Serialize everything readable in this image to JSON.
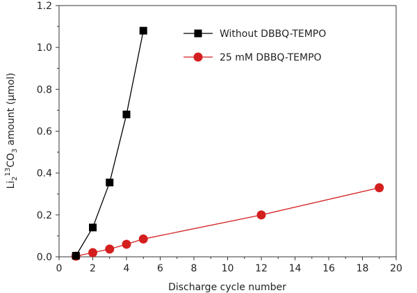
{
  "chart_data": {
    "type": "line",
    "title": "",
    "xlabel": "Discharge cycle number",
    "ylabel": {
      "parts": [
        {
          "text": "Li",
          "style": "normal"
        },
        {
          "text": "2",
          "style": "sub"
        },
        {
          "text": "13",
          "style": "sup"
        },
        {
          "text": "CO",
          "style": "normal"
        },
        {
          "text": "3",
          "style": "sub"
        },
        {
          "text": " amount (μmol)",
          "style": "normal"
        }
      ]
    },
    "xlim": [
      0,
      20
    ],
    "ylim": [
      0,
      1.2
    ],
    "x_ticks": [
      0,
      2,
      4,
      6,
      8,
      10,
      12,
      14,
      16,
      18,
      20
    ],
    "x_tick_labels": [
      "0",
      "2",
      "4",
      "6",
      "8",
      "10",
      "12",
      "14",
      "16",
      "18",
      "20"
    ],
    "y_ticks": [
      0,
      0.2,
      0.4,
      0.6,
      0.8,
      1.0,
      1.2
    ],
    "y_tick_labels": [
      "0.0",
      "0.2",
      "0.4",
      "0.6",
      "0.8",
      "1.0",
      "1.2"
    ],
    "grid": false,
    "legend_position": "top-right",
    "series": [
      {
        "name": "Without DBBQ-TEMPO",
        "color": "#000000",
        "marker": "square",
        "x": [
          1,
          2,
          3,
          4,
          5
        ],
        "values": [
          0.005,
          0.14,
          0.355,
          0.68,
          1.08
        ]
      },
      {
        "name": "25 mM DBBQ-TEMPO",
        "color": "#d41f1f",
        "marker": "circle",
        "x": [
          1,
          2,
          3,
          4,
          5,
          12,
          19
        ],
        "values": [
          0.003,
          0.02,
          0.037,
          0.06,
          0.085,
          0.2,
          0.33
        ]
      }
    ]
  }
}
